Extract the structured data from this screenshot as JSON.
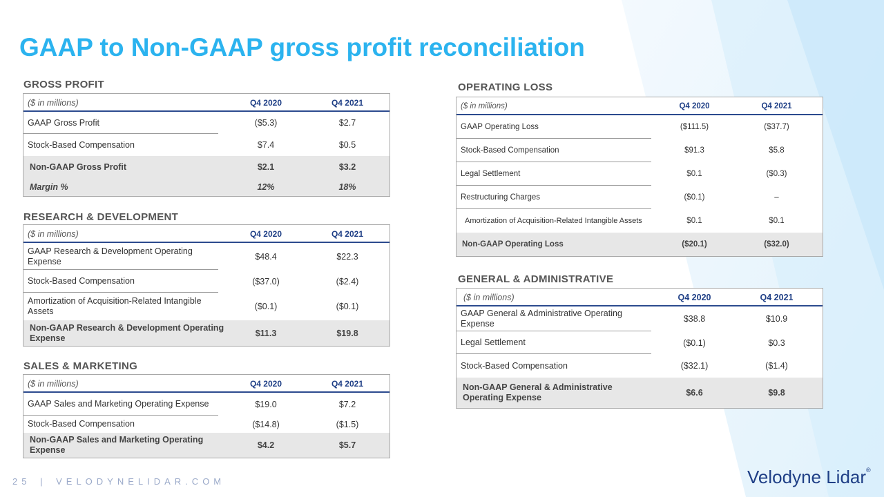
{
  "title": "GAAP to Non-GAAP gross profit reconciliation",
  "gross_profit": {
    "heading": "GROSS PROFIT",
    "header": {
      "label": "($ in millions)",
      "c1": "Q4 2020",
      "c2": "Q4 2021"
    },
    "rows": [
      {
        "label": "GAAP Gross Profit",
        "c1": "($5.3)",
        "c2": "$2.7"
      },
      {
        "label": "Stock-Based Compensation",
        "c1": "$7.4",
        "c2": "$0.5"
      },
      {
        "label": "Non-GAAP Gross Profit",
        "c1": "$2.1",
        "c2": "$3.2"
      },
      {
        "label": "Margin %",
        "c1": "12%",
        "c2": "18%"
      }
    ]
  },
  "research": {
    "heading": "RESEARCH & DEVELOPMENT",
    "header": {
      "label": "($ in millions)",
      "c1": "Q4 2020",
      "c2": "Q4 2021"
    },
    "rows": [
      {
        "label": "GAAP Research & Development Operating Expense",
        "c1": "$48.4",
        "c2": "$22.3"
      },
      {
        "label": "Stock-Based Compensation",
        "c1": "($37.0)",
        "c2": "($2.4)"
      },
      {
        "label": "Amortization of Acquisition-Related Intangible Assets",
        "c1": "($0.1)",
        "c2": "($0.1)"
      },
      {
        "label": "Non-GAAP Research & Development Operating Expense",
        "c1": "$11.3",
        "c2": "$19.8"
      }
    ]
  },
  "sales": {
    "heading": "SALES & MARKETING",
    "header": {
      "label": "($ in millions)",
      "c1": "Q4 2020",
      "c2": "Q4 2021"
    },
    "rows": [
      {
        "label": "GAAP Sales and Marketing Operating Expense",
        "c1": "$19.0",
        "c2": "$7.2"
      },
      {
        "label": "Stock-Based Compensation",
        "c1": "($14.8)",
        "c2": "($1.5)"
      },
      {
        "label": "Non-GAAP Sales and Marketing Operating Expense",
        "c1": "$4.2",
        "c2": "$5.7"
      }
    ]
  },
  "operating": {
    "heading": "OPERATING LOSS",
    "header": {
      "label": "($ in millions)",
      "c1": "Q4 2020",
      "c2": "Q4 2021"
    },
    "rows": [
      {
        "label": "GAAP Operating Loss",
        "c1": "($111.5)",
        "c2": "($37.7)"
      },
      {
        "label": "Stock-Based Compensation",
        "c1": "$91.3",
        "c2": "$5.8"
      },
      {
        "label": "Legal Settlement",
        "c1": "$0.1",
        "c2": "($0.3)"
      },
      {
        "label": "Restructuring Charges",
        "c1": "($0.1)",
        "c2": "–"
      },
      {
        "label": "Amortization of Acquisition-Related Intangible Assets",
        "c1": "$0.1",
        "c2": "$0.1"
      },
      {
        "label": "Non-GAAP Operating Loss",
        "c1": "($20.1)",
        "c2": "($32.0)"
      }
    ]
  },
  "general": {
    "heading": "GENERAL & ADMINISTRATIVE",
    "header": {
      "label": "($ in millions)",
      "c1": "Q4 2020",
      "c2": "Q4 2021"
    },
    "rows": [
      {
        "label": "GAAP General & Administrative Operating Expense",
        "c1": "$38.8",
        "c2": "$10.9"
      },
      {
        "label": "Legal Settlement",
        "c1": "($0.1)",
        "c2": "$0.3"
      },
      {
        "label": "Stock-Based Compensation",
        "c1": "($32.1)",
        "c2": "($1.4)"
      },
      {
        "label": "Non-GAAP General & Administrative Operating Expense",
        "c1": "$6.6",
        "c2": "$9.8"
      }
    ]
  },
  "footer": {
    "page": "25",
    "divider": "|",
    "site": "VELODYNELIDAR.COM"
  },
  "logo": {
    "text": "Velodyne Lidar",
    "mark": "®"
  }
}
